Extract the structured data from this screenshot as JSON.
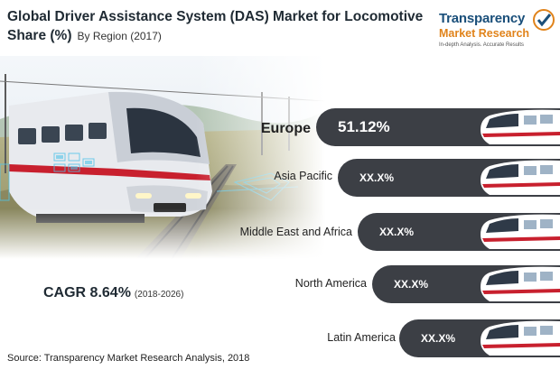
{
  "header": {
    "title": "Global Driver Assistance System (DAS) Market for Locomotive Share (%)",
    "subtitle": "By Region (2017)"
  },
  "logo": {
    "line1": "Transparency",
    "line2": "Market Research",
    "tagline": "In-depth Analysis. Accurate Results"
  },
  "cagr": {
    "label": "CAGR 8.64%",
    "period": "(2018-2026)"
  },
  "source": "Source: Transparency Market Research Analysis, 2018",
  "colors": {
    "bar": "#3c3f45",
    "title": "#1f2a33",
    "logo_blue": "#1a4f7a",
    "logo_orange": "#e0831b"
  },
  "chart_data": {
    "type": "bar",
    "orientation": "horizontal",
    "title": "Global Driver Assistance System (DAS) Market for Locomotive Share (%)",
    "subtitle": "By Region (2017)",
    "categories": [
      "Europe",
      "Asia Pacific",
      "Middle East and Africa",
      "North America",
      "Latin America"
    ],
    "value_labels": [
      "51.12%",
      "XX.X%",
      "XX.X%",
      "XX.X%",
      "XX.X%"
    ],
    "values": [
      51.12,
      null,
      null,
      null,
      null
    ]
  }
}
